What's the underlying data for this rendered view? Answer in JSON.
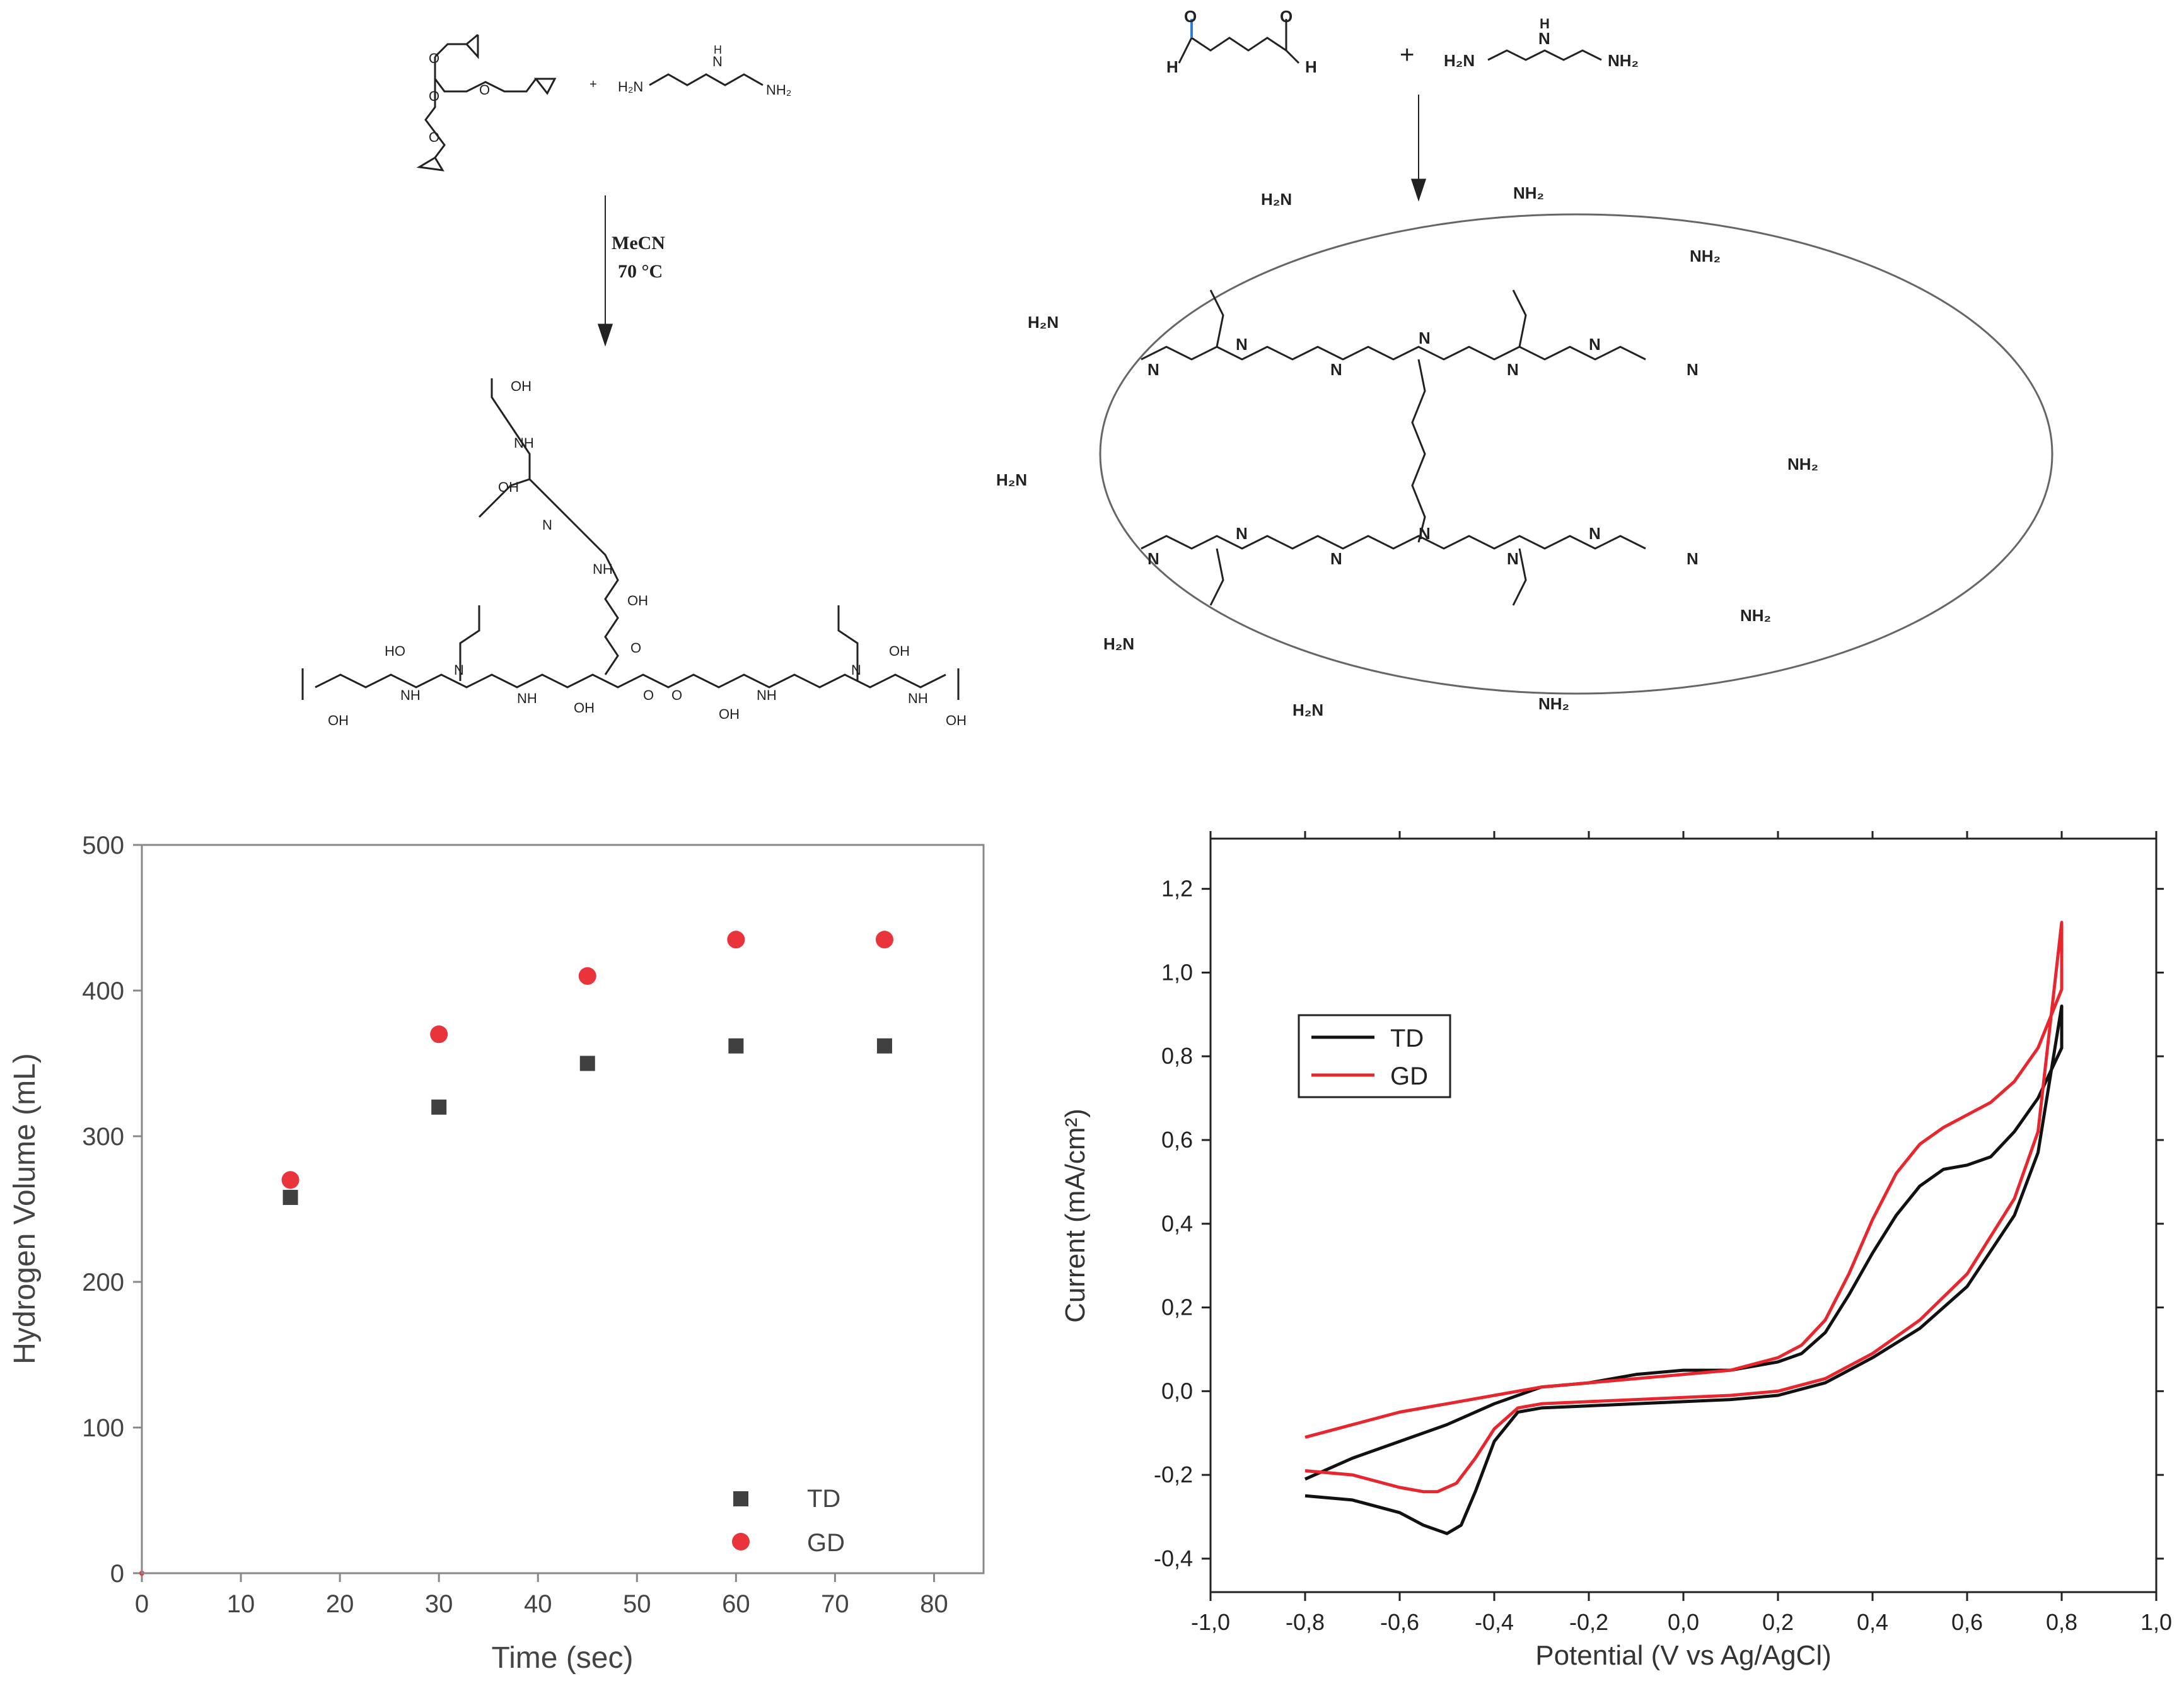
{
  "scheme_left": {
    "reagent_amine": "H₂N⁄⁄N⁄⁄NH₂",
    "amine_h2n": "H₂N",
    "amine_nh": "N",
    "amine_h": "H",
    "amine_nh2": "NH₂",
    "plus": "+",
    "condition_solvent": "MeCN",
    "condition_temp": "70 °C",
    "label_oh": "OH",
    "label_nh": "NH",
    "label_n": "N",
    "label_o": "O",
    "label_ho": "HO"
  },
  "scheme_right": {
    "aldehyde_h_left": "H",
    "aldehyde_h_right": "H",
    "aldehyde_o": "O",
    "plus": "+",
    "amine_h2n": "H₂N",
    "amine_nh": "N",
    "amine_h": "H",
    "amine_nh2": "NH₂",
    "surface_nh2": "NH₂",
    "surface_h2n": "H₂N",
    "imine_n": "N"
  },
  "chart_data": [
    {
      "type": "scatter",
      "xlabel": "Time (sec)",
      "ylabel": "Hydrogen Volume (mL)",
      "xlim": [
        0,
        85
      ],
      "ylim": [
        0,
        500
      ],
      "xticks": [
        0,
        10,
        20,
        30,
        40,
        50,
        60,
        70,
        80
      ],
      "yticks": [
        0,
        100,
        200,
        300,
        400,
        500
      ],
      "legend_position": "bottom-right",
      "series": [
        {
          "name": "TD",
          "marker": "square",
          "color": "#404040",
          "x": [
            0,
            15,
            30,
            45,
            60,
            75
          ],
          "y": [
            0,
            258,
            320,
            350,
            362,
            362
          ]
        },
        {
          "name": "GD",
          "marker": "circle",
          "color": "#e8343a",
          "x": [
            0,
            15,
            30,
            45,
            60,
            75
          ],
          "y": [
            0,
            270,
            370,
            410,
            435,
            435
          ]
        }
      ]
    },
    {
      "type": "line",
      "xlabel": "Potential (V vs Ag/AgCl)",
      "ylabel": "Current (mA/cm²)",
      "xlim": [
        -1.0,
        1.0
      ],
      "ylim": [
        -0.48,
        1.32
      ],
      "xticks": [
        "-1,0",
        "-0,8",
        "-0,6",
        "-0,4",
        "-0,2",
        "0,0",
        "0,2",
        "0,4",
        "0,6",
        "0,8",
        "1,0"
      ],
      "xtick_values": [
        -1.0,
        -0.8,
        -0.6,
        -0.4,
        -0.2,
        0.0,
        0.2,
        0.4,
        0.6,
        0.8,
        1.0
      ],
      "yticks": [
        "-0,4",
        "-0,2",
        "0,0",
        "0,2",
        "0,4",
        "0,6",
        "0,8",
        "1,0",
        "1,2"
      ],
      "ytick_values": [
        -0.4,
        -0.2,
        0.0,
        0.2,
        0.4,
        0.6,
        0.8,
        1.0,
        1.2
      ],
      "legend_position": "upper-left",
      "series": [
        {
          "name": "TD",
          "color": "#111111",
          "x": [
            -0.8,
            -0.7,
            -0.6,
            -0.55,
            -0.5,
            -0.47,
            -0.44,
            -0.4,
            -0.35,
            -0.3,
            -0.2,
            -0.1,
            0.0,
            0.1,
            0.2,
            0.3,
            0.4,
            0.5,
            0.6,
            0.7,
            0.75,
            0.8,
            0.8,
            0.75,
            0.7,
            0.65,
            0.6,
            0.55,
            0.5,
            0.45,
            0.4,
            0.35,
            0.3,
            0.25,
            0.2,
            0.1,
            0.0,
            -0.1,
            -0.2,
            -0.3,
            -0.4,
            -0.5,
            -0.6,
            -0.7,
            -0.8
          ],
          "y": [
            -0.25,
            -0.26,
            -0.29,
            -0.32,
            -0.34,
            -0.32,
            -0.24,
            -0.12,
            -0.05,
            -0.04,
            -0.035,
            -0.03,
            -0.025,
            -0.02,
            -0.01,
            0.02,
            0.08,
            0.15,
            0.25,
            0.42,
            0.57,
            0.92,
            0.82,
            0.7,
            0.62,
            0.56,
            0.54,
            0.53,
            0.49,
            0.42,
            0.33,
            0.23,
            0.14,
            0.09,
            0.07,
            0.05,
            0.05,
            0.04,
            0.02,
            0.01,
            -0.03,
            -0.08,
            -0.12,
            -0.16,
            -0.21
          ]
        },
        {
          "name": "GD",
          "color": "#e8262d",
          "x": [
            -0.8,
            -0.7,
            -0.6,
            -0.55,
            -0.52,
            -0.48,
            -0.44,
            -0.4,
            -0.35,
            -0.3,
            -0.2,
            -0.1,
            0.0,
            0.1,
            0.2,
            0.3,
            0.4,
            0.5,
            0.6,
            0.7,
            0.75,
            0.8,
            0.8,
            0.75,
            0.7,
            0.65,
            0.6,
            0.55,
            0.5,
            0.45,
            0.4,
            0.35,
            0.3,
            0.25,
            0.2,
            0.1,
            0.0,
            -0.1,
            -0.2,
            -0.3,
            -0.4,
            -0.5,
            -0.6,
            -0.7,
            -0.8
          ],
          "y": [
            -0.19,
            -0.2,
            -0.23,
            -0.24,
            -0.24,
            -0.22,
            -0.16,
            -0.09,
            -0.04,
            -0.03,
            -0.025,
            -0.02,
            -0.015,
            -0.01,
            0.0,
            0.03,
            0.09,
            0.17,
            0.28,
            0.46,
            0.62,
            1.12,
            0.96,
            0.82,
            0.74,
            0.69,
            0.66,
            0.63,
            0.59,
            0.52,
            0.41,
            0.28,
            0.17,
            0.11,
            0.08,
            0.05,
            0.04,
            0.03,
            0.02,
            0.01,
            -0.01,
            -0.03,
            -0.05,
            -0.08,
            -0.11
          ]
        }
      ]
    }
  ]
}
